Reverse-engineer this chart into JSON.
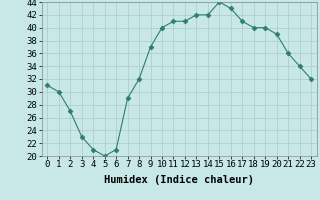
{
  "x": [
    0,
    1,
    2,
    3,
    4,
    5,
    6,
    7,
    8,
    9,
    10,
    11,
    12,
    13,
    14,
    15,
    16,
    17,
    18,
    19,
    20,
    21,
    22,
    23
  ],
  "y": [
    31,
    30,
    27,
    23,
    21,
    20,
    21,
    29,
    32,
    37,
    40,
    41,
    41,
    42,
    42,
    44,
    43,
    41,
    40,
    40,
    39,
    36,
    34,
    32
  ],
  "line_color": "#2e7d6e",
  "marker": "D",
  "marker_size": 2.5,
  "bg_color": "#c8e8e8",
  "grid_color": "#b0d0d0",
  "xlabel": "Humidex (Indice chaleur)",
  "xlabel_fontsize": 7.5,
  "tick_fontsize": 6.5,
  "ylim": [
    20,
    44
  ],
  "xlim": [
    -0.5,
    23.5
  ],
  "yticks": [
    20,
    22,
    24,
    26,
    28,
    30,
    32,
    34,
    36,
    38,
    40,
    42,
    44
  ],
  "xticks": [
    0,
    1,
    2,
    3,
    4,
    5,
    6,
    7,
    8,
    9,
    10,
    11,
    12,
    13,
    14,
    15,
    16,
    17,
    18,
    19,
    20,
    21,
    22,
    23
  ]
}
